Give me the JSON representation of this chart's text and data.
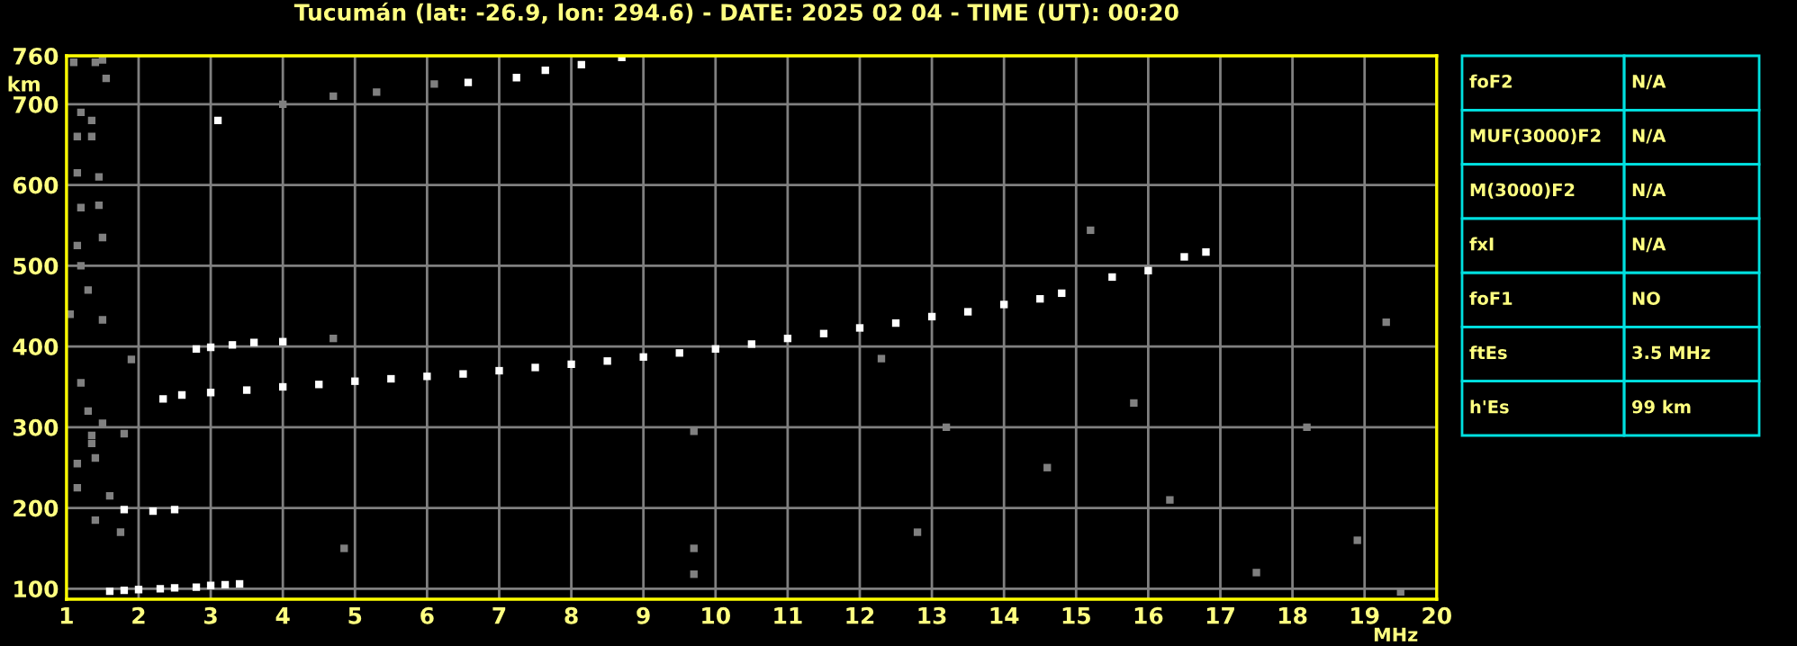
{
  "chart_data": {
    "type": "scatter",
    "title": "Tucumán (lat: -26.9, lon: 294.6) - DATE: 2025 02 04 - TIME (UT): 00:20",
    "xlabel": "MHz",
    "ylabel": "km",
    "xlim": [
      1,
      20
    ],
    "xticks": [
      1,
      2,
      3,
      4,
      5,
      6,
      7,
      8,
      9,
      10,
      11,
      12,
      13,
      14,
      15,
      16,
      17,
      18,
      19,
      20
    ],
    "ylim": [
      87,
      760
    ],
    "yticks": [
      100,
      200,
      300,
      400,
      500,
      600,
      700,
      760
    ],
    "grid": true,
    "marker": "square",
    "series": [
      {
        "color": "#808080",
        "x": [
          1.1,
          1.4,
          1.5,
          1.55,
          1.2,
          1.35,
          1.15,
          1.35,
          1.15,
          1.45,
          1.2,
          1.45,
          1.5,
          1.15,
          1.2,
          1.3,
          1.5,
          1.05,
          1.9,
          1.2,
          1.3,
          1.5,
          1.35,
          1.8,
          1.35,
          1.15,
          1.4,
          1.15,
          1.6,
          1.4,
          1.75,
          4.0,
          4.7,
          5.3,
          6.1,
          4.7,
          4.85,
          9.7,
          9.7,
          9.7,
          12.3,
          15.2,
          13.2,
          14.6,
          16.3,
          18.2,
          19.3,
          18.9,
          12.8,
          15.8,
          17.5,
          19.5
        ],
        "values": [
          752,
          752,
          755,
          732,
          690,
          680,
          660,
          660,
          615,
          610,
          572,
          575,
          535,
          525,
          500,
          470,
          433,
          440,
          384,
          355,
          320,
          305,
          290,
          292,
          280,
          255,
          262,
          225,
          215,
          185,
          170,
          700,
          710,
          715,
          725,
          410,
          150,
          150,
          118,
          295,
          385,
          544,
          300,
          250,
          210,
          300,
          430,
          160,
          170,
          330,
          120,
          96
        ]
      },
      {
        "color": "#ffffff",
        "x": [
          2.34,
          2.6,
          3,
          3.5,
          4,
          4.5,
          5,
          5.5,
          6,
          6.5,
          7,
          7.5,
          8,
          8.5,
          9,
          9.5,
          10,
          10.5,
          11,
          11.5,
          12,
          12.5,
          13,
          13.5,
          14,
          14.5,
          14.8,
          15.5,
          16,
          16.5,
          16.8,
          2.8,
          3.0,
          3.3,
          3.6,
          4.0,
          1.6,
          1.8,
          2,
          2.3,
          2.5,
          2.8,
          3,
          3.2,
          3.4,
          1.8,
          2.2,
          2.5,
          6.57,
          7.24,
          7.64,
          8.14,
          8.7,
          3.1
        ],
        "values": [
          335,
          340,
          343,
          346,
          350,
          353,
          357,
          360,
          363,
          366,
          370,
          374,
          378,
          382,
          387,
          392,
          397,
          403,
          410,
          416,
          423,
          429,
          437,
          443,
          452,
          459,
          466,
          486,
          494,
          511,
          517,
          397,
          399,
          402,
          405,
          406,
          97,
          98,
          99,
          100,
          101,
          102,
          104,
          105,
          106,
          198,
          196,
          198,
          727,
          733,
          742,
          749,
          758,
          680
        ]
      }
    ],
    "annotations": [
      "foF2",
      "N/A",
      "MUF(3000)F2",
      "N/A",
      "M(3000)F2",
      "N/A",
      "fxI",
      "N/A",
      "foF1",
      "NO",
      "ftEs",
      "3.5 MHz",
      "h'Es",
      "99 km"
    ]
  }
}
